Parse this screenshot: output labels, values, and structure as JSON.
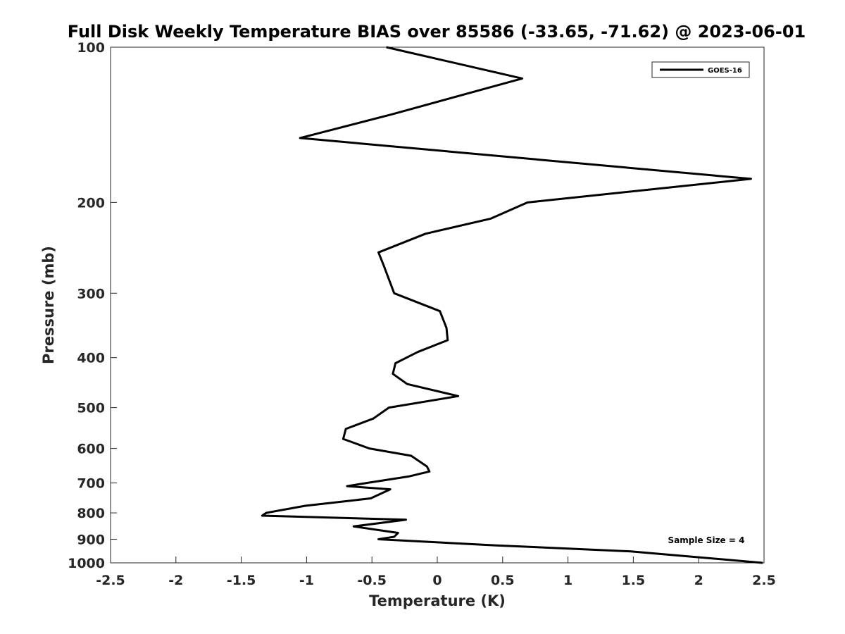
{
  "chart_data": {
    "type": "line",
    "title": "Full Disk Weekly Temperature BIAS over 85586 (-33.65, -71.62) @ 2023-06-01",
    "xlabel": "Temperature (K)",
    "ylabel": "Pressure (mb)",
    "xlim": [
      -2.5,
      2.5
    ],
    "ylim": [
      100,
      1000
    ],
    "y_scale": "log",
    "y_reversed": true,
    "x_ticks": [
      -2.5,
      -2,
      -1.5,
      -1,
      -0.5,
      0,
      0.5,
      1,
      1.5,
      2,
      2.5
    ],
    "x_tick_labels": [
      "-2.5",
      "-2",
      "-1.5",
      "-1",
      "-0.5",
      "0",
      "0.5",
      "1",
      "1.5",
      "2",
      "2.5"
    ],
    "y_ticks": [
      100,
      200,
      300,
      400,
      500,
      600,
      700,
      800,
      900,
      1000
    ],
    "y_tick_labels": [
      "100",
      "200",
      "300",
      "400",
      "500",
      "600",
      "700",
      "800",
      "900",
      "1000"
    ],
    "grid": false,
    "legend_position": "top-right",
    "series": [
      {
        "name": "GOES-16",
        "color": "#000000",
        "points": [
          {
            "x": -0.39,
            "y": 100
          },
          {
            "x": 0.65,
            "y": 115
          },
          {
            "x": -0.35,
            "y": 135
          },
          {
            "x": -1.05,
            "y": 150
          },
          {
            "x": 2.4,
            "y": 180
          },
          {
            "x": 0.69,
            "y": 200
          },
          {
            "x": 0.41,
            "y": 215
          },
          {
            "x": -0.09,
            "y": 230
          },
          {
            "x": -0.45,
            "y": 250
          },
          {
            "x": -0.41,
            "y": 265
          },
          {
            "x": -0.33,
            "y": 300
          },
          {
            "x": 0.02,
            "y": 325
          },
          {
            "x": 0.07,
            "y": 350
          },
          {
            "x": 0.08,
            "y": 370
          },
          {
            "x": -0.15,
            "y": 390
          },
          {
            "x": -0.32,
            "y": 410
          },
          {
            "x": -0.34,
            "y": 430
          },
          {
            "x": -0.23,
            "y": 450
          },
          {
            "x": 0.16,
            "y": 475
          },
          {
            "x": -0.37,
            "y": 500
          },
          {
            "x": -0.49,
            "y": 525
          },
          {
            "x": -0.7,
            "y": 550
          },
          {
            "x": -0.72,
            "y": 575
          },
          {
            "x": -0.52,
            "y": 600
          },
          {
            "x": -0.2,
            "y": 620
          },
          {
            "x": -0.08,
            "y": 650
          },
          {
            "x": -0.06,
            "y": 665
          },
          {
            "x": -0.22,
            "y": 680
          },
          {
            "x": -0.54,
            "y": 700
          },
          {
            "x": -0.69,
            "y": 710
          },
          {
            "x": -0.36,
            "y": 720
          },
          {
            "x": -0.51,
            "y": 750
          },
          {
            "x": -1.01,
            "y": 775
          },
          {
            "x": -1.31,
            "y": 800
          },
          {
            "x": -1.34,
            "y": 810
          },
          {
            "x": -0.24,
            "y": 825
          },
          {
            "x": -0.64,
            "y": 850
          },
          {
            "x": -0.3,
            "y": 875
          },
          {
            "x": -0.33,
            "y": 890
          },
          {
            "x": -0.45,
            "y": 900
          },
          {
            "x": 0.45,
            "y": 925
          },
          {
            "x": 1.48,
            "y": 950
          },
          {
            "x": 2.49,
            "y": 1000
          }
        ]
      }
    ],
    "annotations": [
      {
        "text": "Sample Size = 4",
        "position": "bottom-right"
      }
    ]
  }
}
